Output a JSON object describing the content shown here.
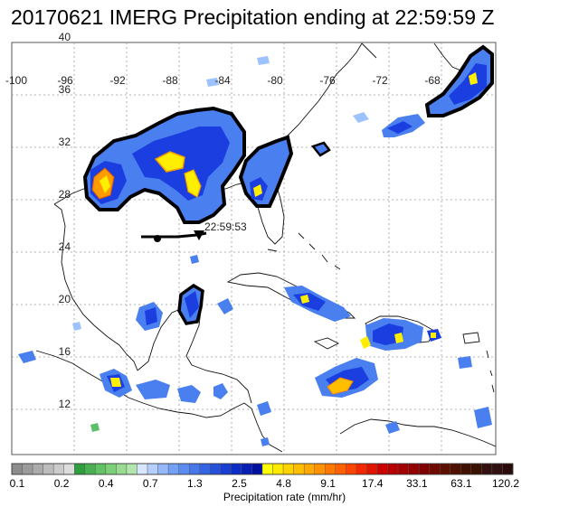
{
  "title": "20170621 IMERG Precipitation ending at 22:59:59 Z",
  "track_time_label": "22:59:53",
  "lon_labels": [
    "-100",
    "-96",
    "-92",
    "-88",
    "-84",
    "-80",
    "-76",
    "-72",
    "-68"
  ],
  "lat_labels": [
    "40",
    "36",
    "32",
    "28",
    "24",
    "20",
    "16",
    "12"
  ],
  "colorbar": {
    "title": "Precipitation rate (mm/hr)",
    "tick_labels": [
      "0.1",
      "0.2",
      "0.4",
      "0.7",
      "1.3",
      "2.5",
      "4.8",
      "9.1",
      "17.4",
      "33.1",
      "63.1",
      "120.2"
    ],
    "colors": [
      "#8c8c8c",
      "#9c9c9c",
      "#ababab",
      "#bcbcbc",
      "#cccccc",
      "#dcdcdc",
      "#2e9e3e",
      "#48b050",
      "#62c264",
      "#7cd07a",
      "#98dc92",
      "#b2e6ac",
      "#d8e6ff",
      "#b6cfff",
      "#94b8fb",
      "#72a1f5",
      "#5c8cf0",
      "#4778ea",
      "#3264e4",
      "#2450dc",
      "#183ed2",
      "#0c2cc6",
      "#0620b6",
      "#0010a0",
      "#ffff00",
      "#ffea00",
      "#ffd400",
      "#ffbe00",
      "#ffa800",
      "#ff9200",
      "#ff7800",
      "#ff6000",
      "#ff4400",
      "#f42800",
      "#e01400",
      "#cc0000",
      "#b80000",
      "#a40000",
      "#920000",
      "#800000",
      "#6e0a00",
      "#5e1000",
      "#4e1000",
      "#421000",
      "#3a1000",
      "#341010",
      "#301010",
      "#2a0a0a"
    ]
  },
  "palette": {
    "light_blue": "#9dc2ff",
    "mid_blue": "#4a7ff0",
    "dark_blue": "#1230d8",
    "yellow": "#ffee00",
    "orange": "#ff9a00",
    "green": "#5cbf6a",
    "track": "#000000"
  }
}
